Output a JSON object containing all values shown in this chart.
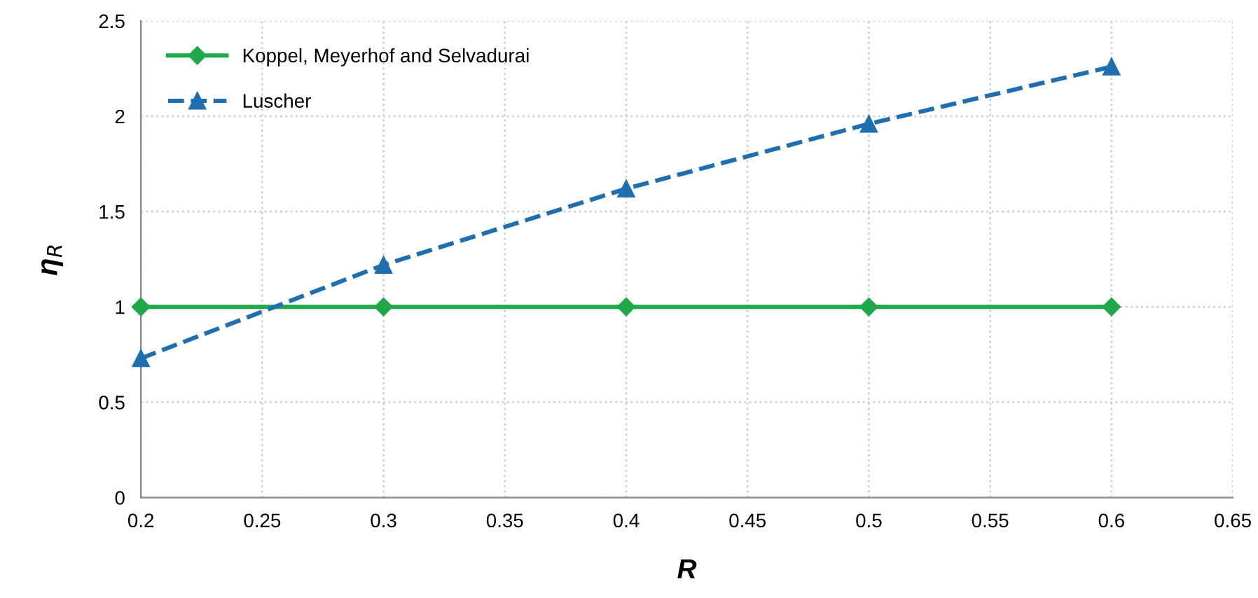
{
  "chart_data": {
    "type": "line",
    "xlabel": "R",
    "ylabel": "η$_{R}$",
    "x": [
      0.2,
      0.3,
      0.4,
      0.5,
      0.6
    ],
    "series": [
      {
        "name": "Koppel, Meyerhof and Selvadurai",
        "color": "#1fa84a",
        "values": [
          1,
          1,
          1,
          1,
          1
        ],
        "marker": "diamond",
        "line_style": "solid"
      },
      {
        "name": "Luscher",
        "color": "#1f6fb0",
        "values": [
          0.73,
          1.22,
          1.62,
          1.96,
          2.26
        ],
        "marker": "triangle",
        "line_style": "dashed"
      }
    ],
    "xlim": [
      0.2,
      0.65
    ],
    "xticks": [
      0.2,
      0.25,
      0.3,
      0.35,
      0.4,
      0.45,
      0.5,
      0.55,
      0.6,
      0.65
    ],
    "ylim": [
      0,
      2.5
    ],
    "yticks": [
      0,
      0.5,
      1,
      1.5,
      2,
      2.5
    ],
    "grid": true,
    "legend": "top left"
  }
}
